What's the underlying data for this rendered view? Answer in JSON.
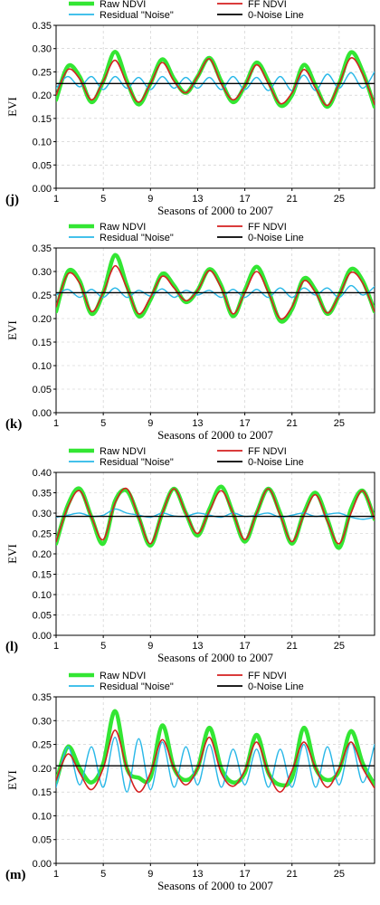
{
  "colors": {
    "raw": "#33e633",
    "ff": "#d42020",
    "residual": "#29b8e8",
    "zero": "#000000",
    "grid": "#c8c8c8"
  },
  "chart_data": [
    {
      "type": "line",
      "panel_label": "(j)",
      "xlabel": "Seasons of 2000 to 2007",
      "ylabel": "EVI",
      "xlim": [
        1,
        28
      ],
      "ylim": [
        0,
        0.35
      ],
      "x_ticks": [
        1,
        5,
        9,
        13,
        17,
        21,
        25
      ],
      "y_ticks": [
        0.0,
        0.05,
        0.1,
        0.15,
        0.2,
        0.25,
        0.3,
        0.35
      ],
      "y_tick_labels": [
        "0.00",
        "0.05",
        "0.10",
        "0.15",
        "0.20",
        "0.25",
        "0.30",
        "0.35"
      ],
      "grid": true,
      "legend_position": "top",
      "x": [
        1,
        2,
        3,
        4,
        5,
        6,
        7,
        8,
        9,
        10,
        11,
        12,
        13,
        14,
        15,
        16,
        17,
        18,
        19,
        20,
        21,
        22,
        23,
        24,
        25,
        26,
        27,
        28
      ],
      "series": [
        {
          "name": "Raw NDVI",
          "values": [
            0.19,
            0.262,
            0.24,
            0.185,
            0.23,
            0.293,
            0.23,
            0.18,
            0.225,
            0.277,
            0.235,
            0.205,
            0.24,
            0.28,
            0.23,
            0.185,
            0.22,
            0.27,
            0.23,
            0.178,
            0.2,
            0.265,
            0.22,
            0.175,
            0.225,
            0.292,
            0.25,
            0.175
          ]
        },
        {
          "name": "Residual \"Noise\"",
          "values": [
            0.215,
            0.24,
            0.218,
            0.24,
            0.212,
            0.24,
            0.215,
            0.238,
            0.212,
            0.24,
            0.215,
            0.238,
            0.215,
            0.238,
            0.212,
            0.24,
            0.212,
            0.238,
            0.21,
            0.24,
            0.21,
            0.243,
            0.21,
            0.245,
            0.215,
            0.248,
            0.215,
            0.25
          ]
        },
        {
          "name": "FF NDVI",
          "values": [
            0.2,
            0.255,
            0.235,
            0.19,
            0.23,
            0.275,
            0.225,
            0.185,
            0.225,
            0.27,
            0.23,
            0.205,
            0.24,
            0.278,
            0.225,
            0.19,
            0.22,
            0.265,
            0.225,
            0.182,
            0.205,
            0.255,
            0.215,
            0.178,
            0.225,
            0.28,
            0.245,
            0.18
          ]
        },
        {
          "name": "0-Noise Line",
          "values": [
            0.225,
            0.225,
            0.225,
            0.225,
            0.225,
            0.225,
            0.225,
            0.225,
            0.225,
            0.225,
            0.225,
            0.225,
            0.225,
            0.225,
            0.225,
            0.225,
            0.225,
            0.225,
            0.225,
            0.225,
            0.225,
            0.225,
            0.225,
            0.225,
            0.225,
            0.225,
            0.225,
            0.225
          ]
        }
      ]
    },
    {
      "type": "line",
      "panel_label": "(k)",
      "xlabel": "Seasons of 2000 to 2007",
      "ylabel": "EVI",
      "xlim": [
        1,
        28
      ],
      "ylim": [
        0,
        0.35
      ],
      "x_ticks": [
        1,
        5,
        9,
        13,
        17,
        21,
        25
      ],
      "y_ticks": [
        0.0,
        0.05,
        0.1,
        0.15,
        0.2,
        0.25,
        0.3,
        0.35
      ],
      "y_tick_labels": [
        "0.00",
        "0.05",
        "0.10",
        "0.15",
        "0.20",
        "0.25",
        "0.30",
        "0.35"
      ],
      "grid": true,
      "legend_position": "top",
      "x": [
        1,
        2,
        3,
        4,
        5,
        6,
        7,
        8,
        9,
        10,
        11,
        12,
        13,
        14,
        15,
        16,
        17,
        18,
        19,
        20,
        21,
        22,
        23,
        24,
        25,
        26,
        27,
        28
      ],
      "series": [
        {
          "name": "Raw NDVI",
          "values": [
            0.215,
            0.3,
            0.28,
            0.21,
            0.255,
            0.335,
            0.27,
            0.205,
            0.24,
            0.295,
            0.27,
            0.235,
            0.26,
            0.305,
            0.27,
            0.205,
            0.26,
            0.31,
            0.26,
            0.195,
            0.22,
            0.285,
            0.26,
            0.21,
            0.25,
            0.305,
            0.28,
            0.215
          ]
        },
        {
          "name": "Residual \"Noise\"",
          "values": [
            0.25,
            0.262,
            0.245,
            0.262,
            0.245,
            0.265,
            0.245,
            0.26,
            0.248,
            0.263,
            0.245,
            0.26,
            0.25,
            0.26,
            0.245,
            0.262,
            0.245,
            0.262,
            0.245,
            0.265,
            0.245,
            0.265,
            0.25,
            0.265,
            0.245,
            0.27,
            0.25,
            0.268
          ]
        },
        {
          "name": "FF NDVI",
          "values": [
            0.225,
            0.295,
            0.275,
            0.215,
            0.255,
            0.312,
            0.265,
            0.21,
            0.245,
            0.29,
            0.265,
            0.238,
            0.26,
            0.302,
            0.265,
            0.21,
            0.255,
            0.3,
            0.255,
            0.2,
            0.225,
            0.28,
            0.255,
            0.212,
            0.25,
            0.298,
            0.275,
            0.215
          ]
        },
        {
          "name": "0-Noise Line",
          "values": [
            0.255,
            0.255,
            0.255,
            0.255,
            0.255,
            0.255,
            0.255,
            0.255,
            0.255,
            0.255,
            0.255,
            0.255,
            0.255,
            0.255,
            0.255,
            0.255,
            0.255,
            0.255,
            0.255,
            0.255,
            0.255,
            0.255,
            0.255,
            0.255,
            0.255,
            0.255,
            0.255,
            0.255
          ]
        }
      ]
    },
    {
      "type": "line",
      "panel_label": "(l)",
      "xlabel": "Seasons of 2000 to 2007",
      "ylabel": "EVI",
      "xlim": [
        1,
        28
      ],
      "ylim": [
        0,
        0.4
      ],
      "x_ticks": [
        1,
        5,
        9,
        13,
        17,
        21,
        25
      ],
      "y_ticks": [
        0.0,
        0.05,
        0.1,
        0.15,
        0.2,
        0.25,
        0.3,
        0.35,
        0.4
      ],
      "y_tick_labels": [
        "0.00",
        "0.05",
        "0.10",
        "0.15",
        "0.20",
        "0.25",
        "0.30",
        "0.35",
        "0.40"
      ],
      "grid": true,
      "legend_position": "top",
      "x": [
        1,
        2,
        3,
        4,
        5,
        6,
        7,
        8,
        9,
        10,
        11,
        12,
        13,
        14,
        15,
        16,
        17,
        18,
        19,
        20,
        21,
        22,
        23,
        24,
        25,
        26,
        27,
        28
      ],
      "series": [
        {
          "name": "Raw NDVI",
          "values": [
            0.225,
            0.32,
            0.36,
            0.29,
            0.225,
            0.33,
            0.355,
            0.29,
            0.22,
            0.3,
            0.36,
            0.3,
            0.245,
            0.31,
            0.365,
            0.3,
            0.23,
            0.3,
            0.36,
            0.3,
            0.225,
            0.3,
            0.35,
            0.285,
            0.215,
            0.31,
            0.355,
            0.285
          ]
        },
        {
          "name": "Residual \"Noise\"",
          "values": [
            0.29,
            0.295,
            0.3,
            0.292,
            0.295,
            0.31,
            0.3,
            0.295,
            0.29,
            0.3,
            0.293,
            0.292,
            0.3,
            0.295,
            0.29,
            0.3,
            0.292,
            0.295,
            0.3,
            0.29,
            0.295,
            0.3,
            0.292,
            0.297,
            0.3,
            0.29,
            0.285,
            0.29
          ]
        },
        {
          "name": "FF NDVI",
          "values": [
            0.23,
            0.315,
            0.355,
            0.29,
            0.235,
            0.325,
            0.36,
            0.29,
            0.225,
            0.3,
            0.36,
            0.3,
            0.25,
            0.305,
            0.355,
            0.3,
            0.235,
            0.3,
            0.36,
            0.295,
            0.23,
            0.295,
            0.345,
            0.28,
            0.225,
            0.3,
            0.355,
            0.285
          ]
        },
        {
          "name": "0-Noise Line",
          "values": [
            0.292,
            0.292,
            0.292,
            0.292,
            0.292,
            0.292,
            0.292,
            0.292,
            0.292,
            0.292,
            0.292,
            0.292,
            0.292,
            0.292,
            0.292,
            0.292,
            0.292,
            0.292,
            0.292,
            0.292,
            0.292,
            0.292,
            0.292,
            0.292,
            0.292,
            0.292,
            0.292,
            0.292
          ]
        }
      ]
    },
    {
      "type": "line",
      "panel_label": "(m)",
      "xlabel": "Seasons of 2000 to 2007",
      "ylabel": "EVI",
      "xlim": [
        1,
        28
      ],
      "ylim": [
        0,
        0.35
      ],
      "x_ticks": [
        1,
        5,
        9,
        13,
        17,
        21,
        25
      ],
      "y_ticks": [
        0.0,
        0.05,
        0.1,
        0.15,
        0.2,
        0.25,
        0.3,
        0.35
      ],
      "y_tick_labels": [
        "0.00",
        "0.05",
        "0.10",
        "0.15",
        "0.20",
        "0.25",
        "0.30",
        "0.35"
      ],
      "grid": true,
      "legend_position": "top",
      "x": [
        1,
        2,
        3,
        4,
        5,
        6,
        7,
        8,
        9,
        10,
        11,
        12,
        13,
        14,
        15,
        16,
        17,
        18,
        19,
        20,
        21,
        22,
        23,
        24,
        25,
        26,
        27,
        28
      ],
      "series": [
        {
          "name": "Raw NDVI",
          "values": [
            0.17,
            0.245,
            0.2,
            0.17,
            0.21,
            0.32,
            0.2,
            0.18,
            0.18,
            0.29,
            0.2,
            0.175,
            0.2,
            0.285,
            0.2,
            0.17,
            0.19,
            0.27,
            0.19,
            0.165,
            0.18,
            0.285,
            0.2,
            0.175,
            0.195,
            0.278,
            0.21,
            0.165
          ]
        },
        {
          "name": "Residual \"Noise\"",
          "values": [
            0.16,
            0.245,
            0.165,
            0.245,
            0.16,
            0.265,
            0.15,
            0.262,
            0.155,
            0.255,
            0.16,
            0.245,
            0.165,
            0.25,
            0.16,
            0.24,
            0.165,
            0.24,
            0.16,
            0.24,
            0.16,
            0.25,
            0.16,
            0.245,
            0.165,
            0.255,
            0.17,
            0.25
          ]
        },
        {
          "name": "FF NDVI",
          "values": [
            0.175,
            0.23,
            0.19,
            0.155,
            0.2,
            0.28,
            0.2,
            0.15,
            0.19,
            0.26,
            0.2,
            0.165,
            0.2,
            0.265,
            0.19,
            0.162,
            0.195,
            0.255,
            0.19,
            0.15,
            0.195,
            0.255,
            0.2,
            0.16,
            0.2,
            0.255,
            0.2,
            0.158
          ]
        },
        {
          "name": "0-Noise Line",
          "values": [
            0.205,
            0.205,
            0.205,
            0.205,
            0.205,
            0.205,
            0.205,
            0.205,
            0.205,
            0.205,
            0.205,
            0.205,
            0.205,
            0.205,
            0.205,
            0.205,
            0.205,
            0.205,
            0.205,
            0.205,
            0.205,
            0.205,
            0.205,
            0.205,
            0.205,
            0.205,
            0.205,
            0.205
          ]
        }
      ]
    }
  ]
}
